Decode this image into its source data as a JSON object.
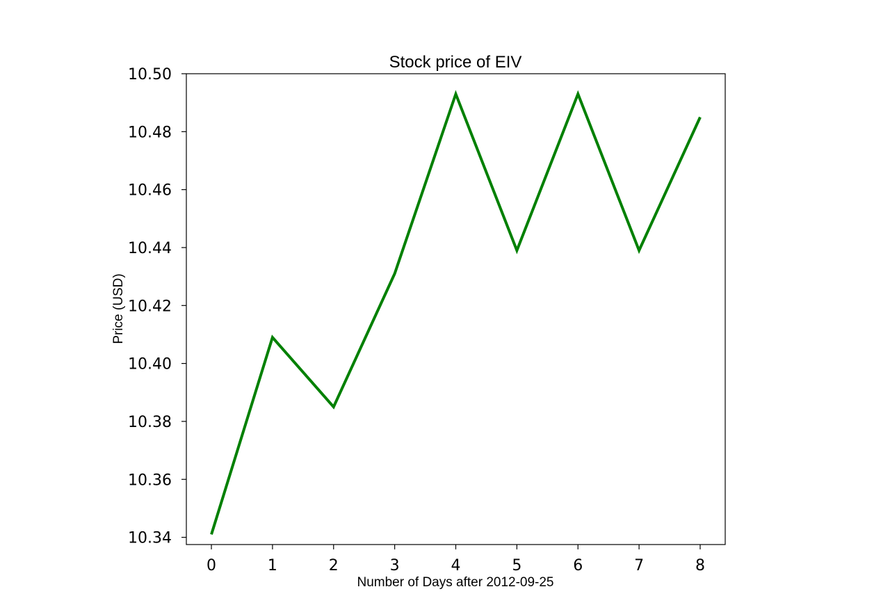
{
  "chart_data": {
    "type": "line",
    "title": "Stock price of EIV",
    "xlabel": "Number of Days after 2012-09-25",
    "ylabel": "Price (USD)",
    "x": [
      0,
      1,
      2,
      3,
      4,
      5,
      6,
      7,
      8
    ],
    "series": [
      {
        "values": [
          10.341,
          10.409,
          10.385,
          10.431,
          10.493,
          10.439,
          10.493,
          10.439,
          10.485
        ],
        "color": "#008000"
      }
    ],
    "xlim": [
      -0.41,
      8.41
    ],
    "ylim": [
      10.3375,
      10.5
    ],
    "xticks": [
      0,
      1,
      2,
      3,
      4,
      5,
      6,
      7,
      8
    ],
    "xtick_labels": [
      "0",
      "1",
      "2",
      "3",
      "4",
      "5",
      "6",
      "7",
      "8"
    ],
    "yticks": [
      10.34,
      10.36,
      10.38,
      10.4,
      10.42,
      10.44,
      10.46,
      10.48,
      10.5
    ],
    "ytick_labels": [
      "10.34",
      "10.36",
      "10.38",
      "10.40",
      "10.42",
      "10.44",
      "10.46",
      "10.48",
      "10.50"
    ],
    "grid": false,
    "legend": "none"
  }
}
